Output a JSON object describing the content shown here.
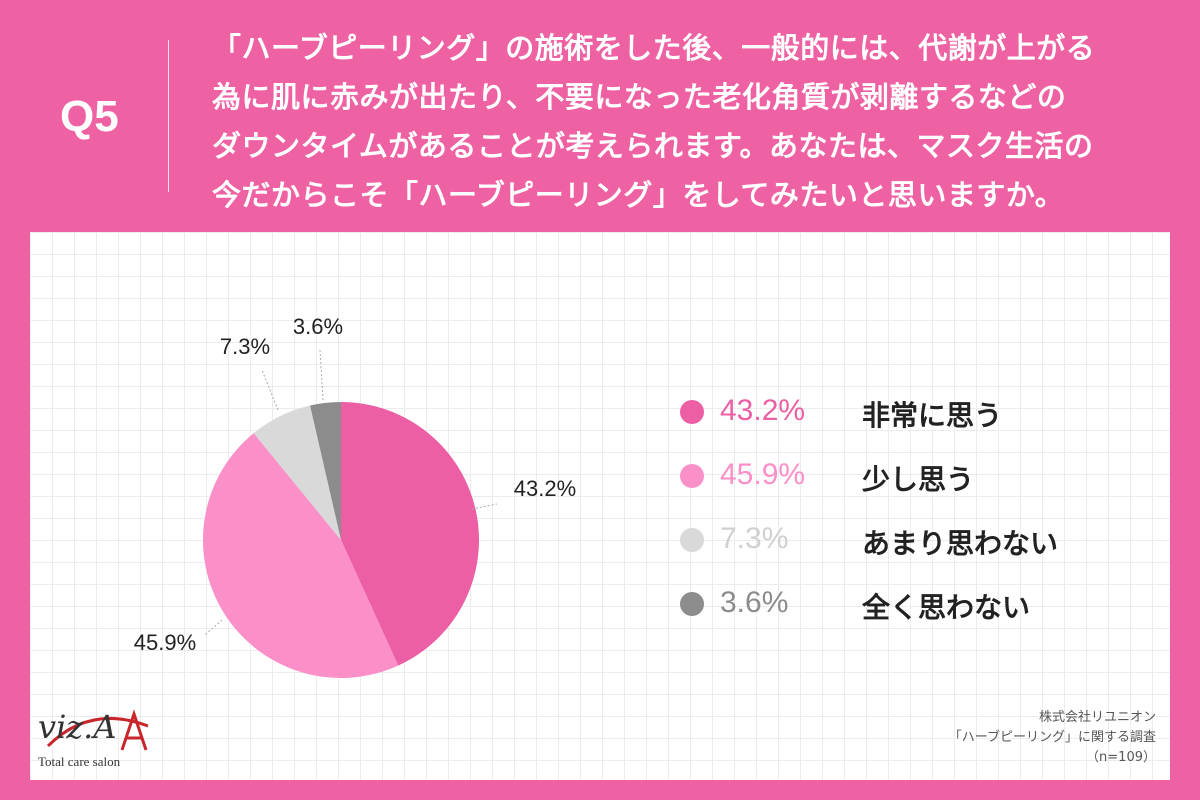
{
  "question_number": "Q5",
  "question_lines": [
    "「ハーブピーリング」の施術をした後、一般的には、代謝が上がる",
    "為に肌に赤みが出たり、不要になった老化角質が剥離するなどの",
    "ダウンタイムがあることが考えられます。あなたは、マスク生活の",
    "今だからこそ「ハーブピーリング」をしてみたいと思いますか。"
  ],
  "chart_data": {
    "type": "pie",
    "start_angle_deg": 0,
    "direction": "clockwise",
    "slices": [
      {
        "label": "非常に思う",
        "value": 43.2,
        "display": "43.2%",
        "color": "#ec5fa4"
      },
      {
        "label": "少し思う",
        "value": 45.9,
        "display": "45.9%",
        "color": "#fb8fc8"
      },
      {
        "label": "あまり思わない",
        "value": 7.3,
        "display": "7.3%",
        "color": "#d9d9d9"
      },
      {
        "label": "全く思わない",
        "value": 3.6,
        "display": "3.6%",
        "color": "#8c8c8c"
      }
    ]
  },
  "legend": [
    {
      "value": "43.2%",
      "label": "非常に思う",
      "color": "#ec5fa4",
      "text_color": "#ec5fa4"
    },
    {
      "value": "45.9%",
      "label": "少し思う",
      "color": "#fb8fc8",
      "text_color": "#fb8fc8"
    },
    {
      "value": "7.3%",
      "label": "あまり思わない",
      "color": "#d9d9d9",
      "text_color": "#d0d0d0"
    },
    {
      "value": "3.6%",
      "label": "全く思わない",
      "color": "#8c8c8c",
      "text_color": "#8c8c8c"
    }
  ],
  "logo": {
    "mark": "viz.A",
    "subtitle": "Total care salon"
  },
  "source": {
    "company": "株式会社リユニオン",
    "survey": "「ハーブピーリング」に関する調査",
    "sample": "（n=109）"
  }
}
